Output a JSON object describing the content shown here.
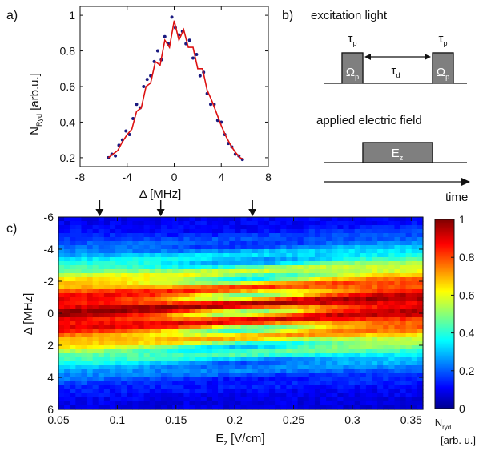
{
  "panel_labels": {
    "a": "a)",
    "b": "b)",
    "c": "c)"
  },
  "colors": {
    "fit_line": "#dd1111",
    "data_point": "#1a1a80",
    "box_fill": "#7f7f7f"
  },
  "chart_data": [
    {
      "panel": "a",
      "type": "scatter",
      "xlabel": "Δ [MHz]",
      "ylabel_main": "N",
      "ylabel_sub": "Ryd",
      "ylabel_unit": " [arb.u.]",
      "xlim": [
        -8,
        8
      ],
      "ylim": [
        0.15,
        1.05
      ],
      "xticks": [
        -8,
        -4,
        0,
        4,
        8
      ],
      "yticks": [
        0.2,
        0.4,
        0.6,
        0.8,
        1
      ],
      "grid": false,
      "series": [
        {
          "kind": "points",
          "x": [
            -5.6,
            -5.3,
            -5.0,
            -4.7,
            -4.4,
            -4.1,
            -3.8,
            -3.5,
            -3.2,
            -2.9,
            -2.6,
            -2.3,
            -2.0,
            -1.7,
            -1.4,
            -1.1,
            -0.8,
            -0.5,
            -0.2,
            0.1,
            0.4,
            0.7,
            1.0,
            1.3,
            1.6,
            1.9,
            2.2,
            2.5,
            2.8,
            3.1,
            3.4,
            3.7,
            4.0,
            4.3,
            4.6,
            4.9,
            5.2,
            5.5,
            5.8
          ],
          "y": [
            0.2,
            0.22,
            0.21,
            0.27,
            0.3,
            0.35,
            0.33,
            0.42,
            0.5,
            0.48,
            0.6,
            0.64,
            0.66,
            0.74,
            0.8,
            0.75,
            0.88,
            0.84,
            0.99,
            0.93,
            0.89,
            0.91,
            0.84,
            0.86,
            0.76,
            0.78,
            0.66,
            0.68,
            0.56,
            0.5,
            0.5,
            0.41,
            0.4,
            0.33,
            0.28,
            0.26,
            0.22,
            0.21,
            0.19
          ]
        },
        {
          "kind": "fit",
          "x": [
            -5.6,
            -5.2,
            -4.8,
            -4.4,
            -4.0,
            -3.6,
            -3.2,
            -2.8,
            -2.4,
            -2.0,
            -1.6,
            -1.2,
            -0.8,
            -0.4,
            0.0,
            0.4,
            0.8,
            1.2,
            1.6,
            2.0,
            2.4,
            2.8,
            3.2,
            3.6,
            4.0,
            4.4,
            4.8,
            5.2,
            5.6,
            5.9
          ],
          "y": [
            0.2,
            0.22,
            0.24,
            0.29,
            0.33,
            0.36,
            0.46,
            0.48,
            0.6,
            0.62,
            0.74,
            0.72,
            0.86,
            0.82,
            0.97,
            0.86,
            0.92,
            0.82,
            0.82,
            0.7,
            0.7,
            0.58,
            0.52,
            0.45,
            0.38,
            0.32,
            0.27,
            0.23,
            0.2,
            0.19
          ]
        }
      ]
    },
    {
      "panel": "c",
      "type": "heatmap",
      "xlabel_main": "E",
      "xlabel_sub": "z",
      "xlabel_unit": " [V/cm]",
      "ylabel": "Δ [MHz]",
      "xlim": [
        0.05,
        0.36
      ],
      "ylim": [
        -6,
        6
      ],
      "xticks": [
        0.05,
        0.1,
        0.15,
        0.2,
        0.25,
        0.3,
        0.35
      ],
      "yticks": [
        -6,
        -4,
        -2,
        0,
        2,
        4,
        6
      ],
      "arrows_at_x": [
        0.085,
        0.137,
        0.215
      ],
      "colorbar": {
        "range": [
          0,
          1
        ],
        "ticks": [
          0,
          0.2,
          0.4,
          0.6,
          0.8,
          1
        ],
        "label_main": "N",
        "label_sub": "ryd",
        "label_unit": "[arb. u.]"
      }
    }
  ],
  "timing_diagram": {
    "title_light": "excitation light",
    "title_field": "applied electric field",
    "tau": "τ",
    "tau_p_sub": "p",
    "tau_d_sub": "d",
    "omega": "Ω",
    "omega_sub": "p",
    "field_main": "E",
    "field_sub": "z",
    "time_label": "time"
  }
}
